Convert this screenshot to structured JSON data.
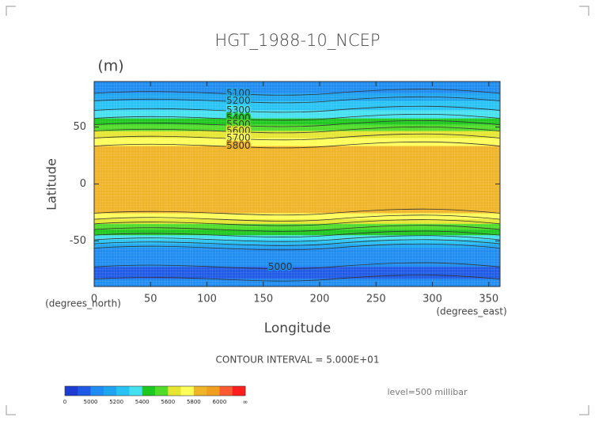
{
  "chart_data": {
    "type": "contour",
    "title": "HGT_1988-10_NCEP",
    "units": "(m)",
    "x_label": "Longitude",
    "y_label": "Latitude",
    "x_units": "(degrees_east)",
    "y_units": "(degrees_north)",
    "contour_interval": "CONTOUR INTERVAL = 5.000E+01",
    "level": "level=500 millibar",
    "xlim": [
      0,
      360
    ],
    "xticks": [
      0,
      50,
      100,
      150,
      200,
      250,
      300,
      350
    ],
    "ylim": [
      -90,
      90
    ],
    "yticks": [
      -50,
      0,
      50
    ],
    "x": [
      90,
      79.6,
      72.9,
      64.6,
      57.6,
      52,
      46.5,
      40.3,
      33.3,
      20,
      0,
      -15,
      -25.7,
      -31,
      -35,
      -40,
      -45,
      -49,
      -52.5,
      -56.3,
      -66,
      -74,
      -82,
      -90
    ],
    "values": [
      5050,
      5100,
      5200,
      5300,
      5400,
      5500,
      5600,
      5700,
      5800,
      5870,
      5880,
      5860,
      5800,
      5700,
      5600,
      5500,
      5400,
      5300,
      5200,
      5100,
      5030,
      4995,
      4995,
      5020
    ],
    "contour_labels": [
      5000,
      5100,
      5200,
      5300,
      5400,
      5500,
      5600,
      5700,
      5800
    ],
    "levels": [
      0,
      4900,
      5000,
      5100,
      5200,
      5300,
      5400,
      5500,
      5600,
      5700,
      5800,
      5900,
      6000,
      6100
    ],
    "colors": [
      "#1e3cd2",
      "#1e5ae6",
      "#1e8cf0",
      "#1ea5f0",
      "#28c3f5",
      "#46e1f0",
      "#1ec81e",
      "#50dc28",
      "#e6e632",
      "#ffff5a",
      "#f0b428",
      "#f0a01e",
      "#ff5a32",
      "#ff1e1e"
    ],
    "colorbar_ticks": [
      0,
      5000,
      5200,
      5400,
      5600,
      5800,
      6000
    ],
    "colorbar_end_label": "∞"
  }
}
